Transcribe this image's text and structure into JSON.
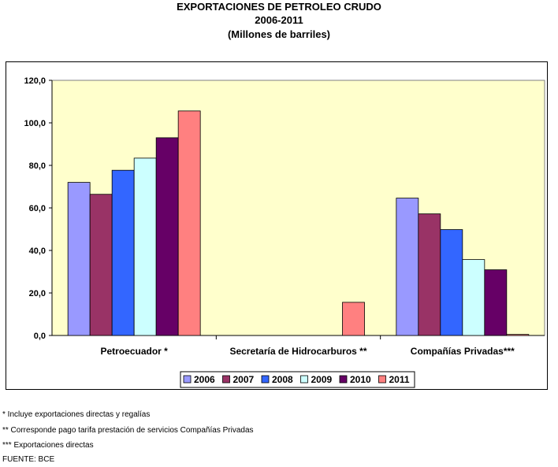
{
  "header": {
    "title": "EXPORTACIONES DE PETROLEO CRUDO",
    "subtitle": "2006-2011",
    "units": "(Millones de barriles)"
  },
  "chart_data": {
    "type": "bar",
    "title": "EXPORTACIONES DE PETROLEO CRUDO",
    "categories": [
      "Petroecuador *",
      "Secretaría de Hidrocarburos **",
      "Compañías Privadas***"
    ],
    "series": [
      {
        "name": "2006",
        "color": "#9999ff",
        "values": [
          72.0,
          0.0,
          64.6
        ]
      },
      {
        "name": "2007",
        "color": "#993366",
        "values": [
          66.4,
          0.0,
          57.2
        ]
      },
      {
        "name": "2008",
        "color": "#3366ff",
        "values": [
          77.7,
          0.0,
          49.8
        ]
      },
      {
        "name": "2009",
        "color": "#ccffff",
        "values": [
          83.4,
          0.0,
          35.7
        ]
      },
      {
        "name": "2010",
        "color": "#660066",
        "values": [
          93.0,
          0.0,
          30.9
        ]
      },
      {
        "name": "2011",
        "color": "#ff8080",
        "values": [
          105.6,
          15.6,
          0.5
        ]
      }
    ],
    "ylim": [
      0,
      120
    ],
    "yticks": [
      "0,0",
      "20,0",
      "40,0",
      "60,0",
      "80,0",
      "100,0",
      "120,0"
    ],
    "plot_background": "#ffffcc",
    "grid": false,
    "legend_position": "bottom"
  },
  "footnotes": [
    "* Incluye exportaciones directas y regalías",
    "** Corresponde pago tarifa prestación de servicios Compañías Privadas",
    "*** Exportaciones directas",
    "FUENTE: BCE"
  ]
}
